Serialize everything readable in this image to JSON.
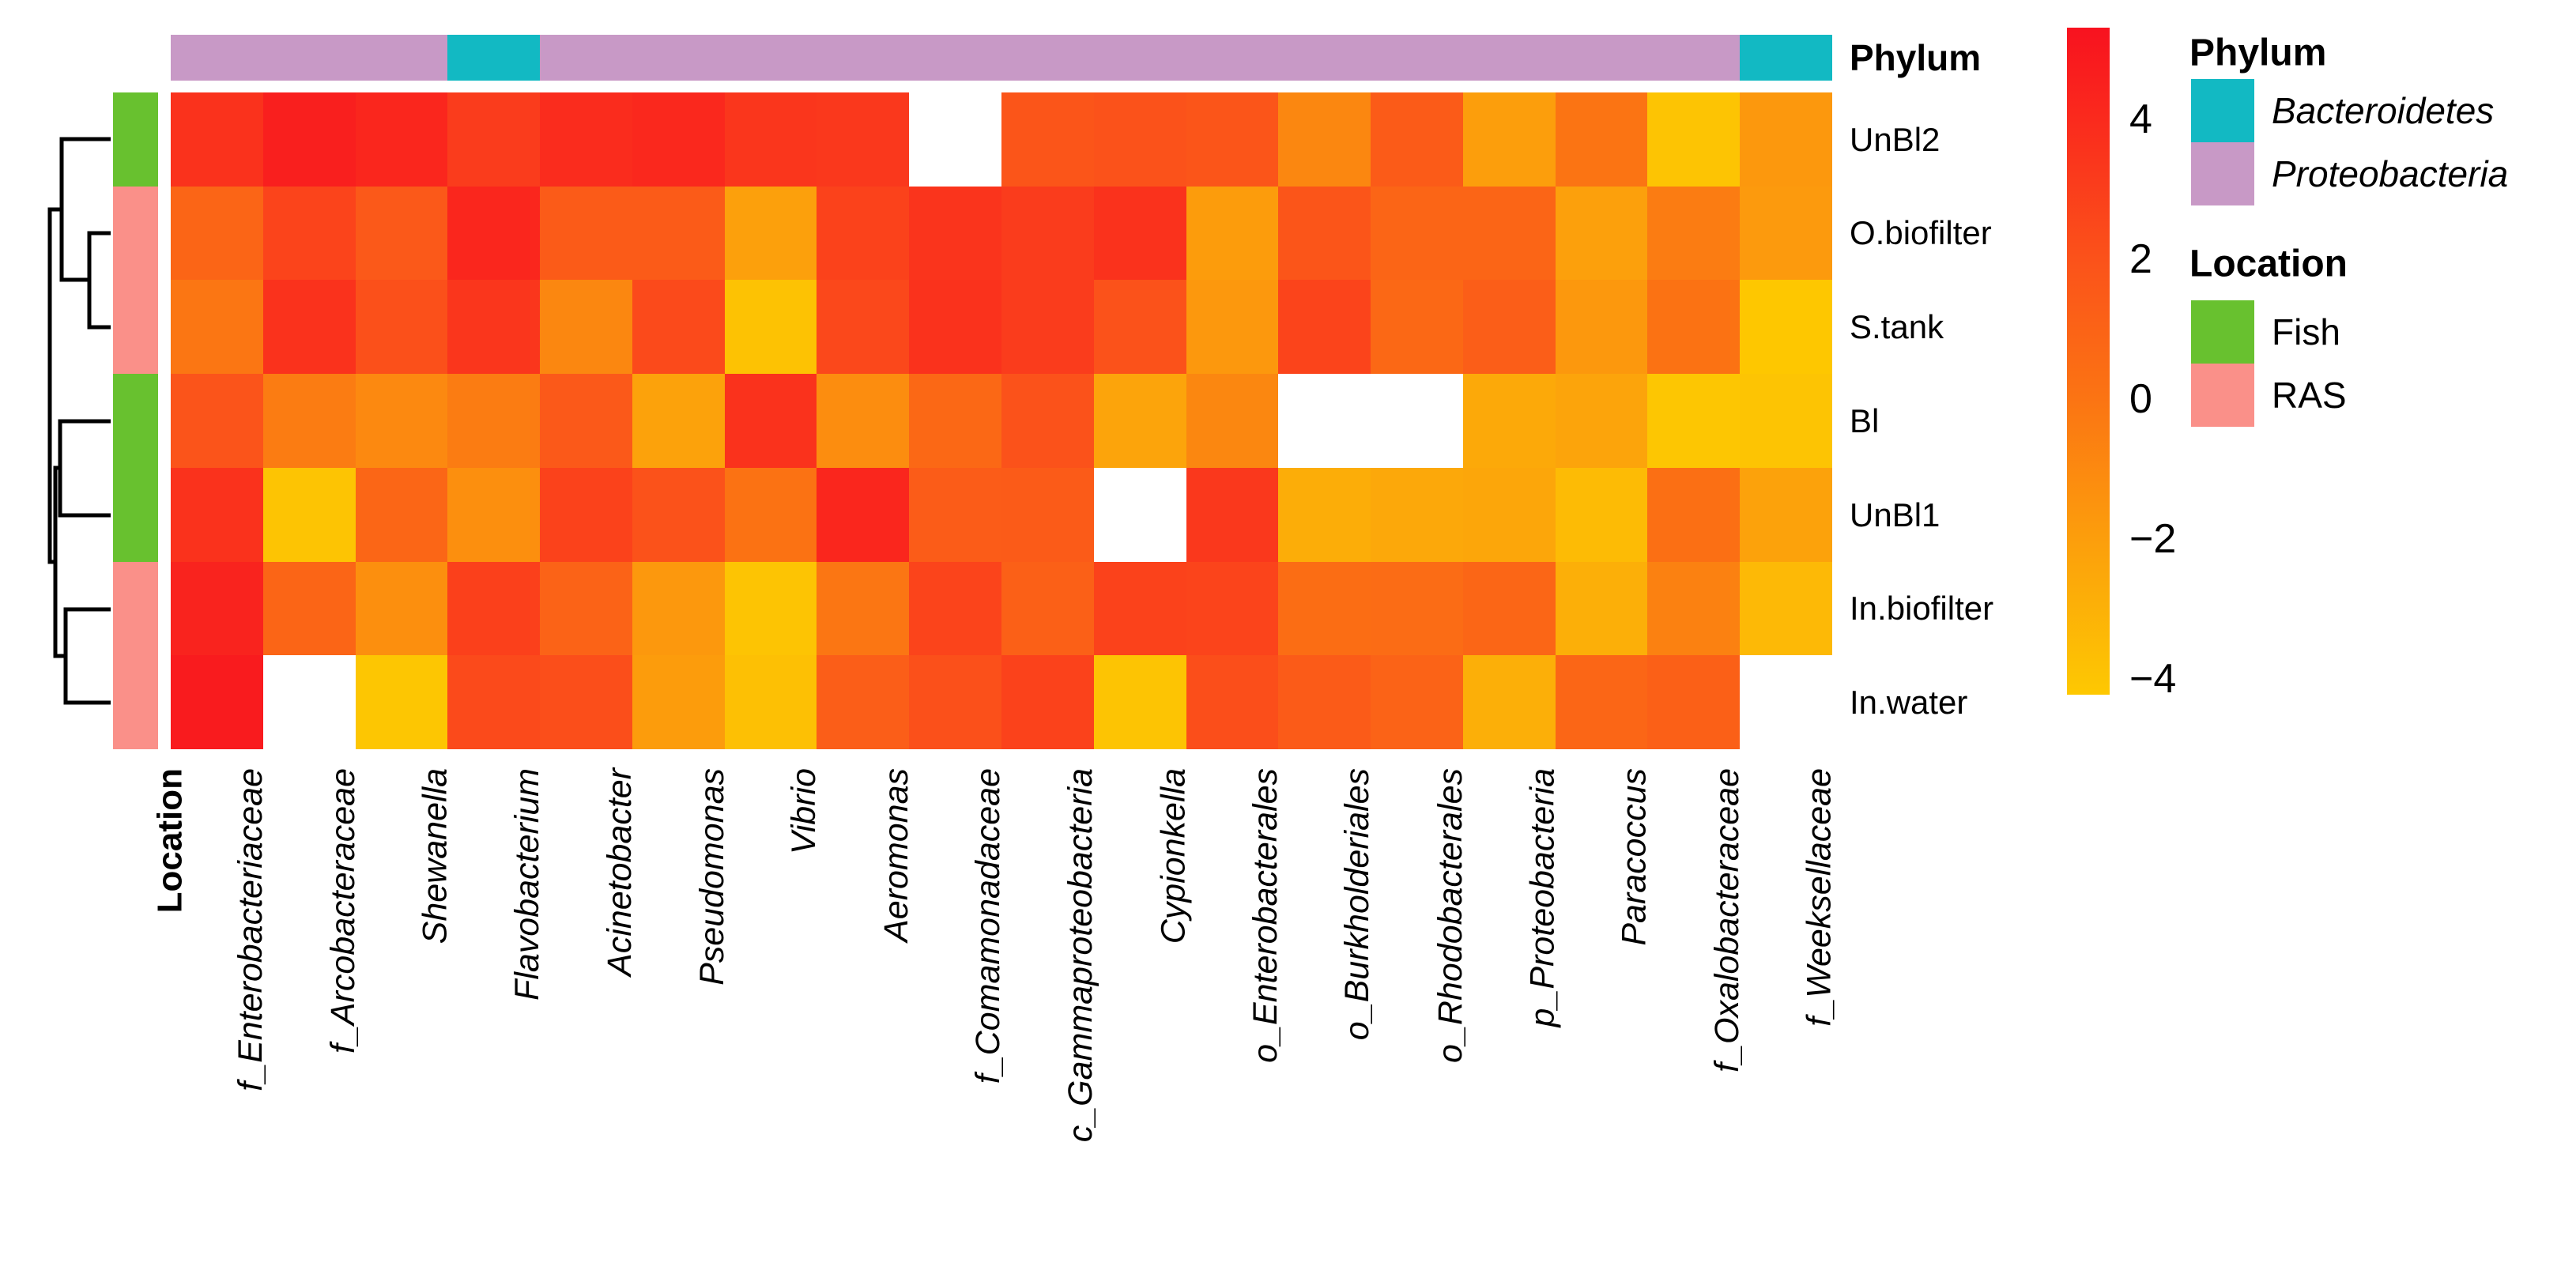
{
  "chart_data": {
    "type": "heatmap",
    "rows": [
      "UnBl2",
      "O.biofilter",
      "S.tank",
      "Bl",
      "UnBl1",
      "In.biofilter",
      "In.water"
    ],
    "row_location": [
      "Fish",
      "RAS",
      "RAS",
      "Fish",
      "Fish",
      "RAS",
      "RAS"
    ],
    "columns": [
      "f_Enterobacteriaceae",
      "f_Arcobacteraceae",
      "Shewanella",
      "Flavobacterium",
      "Acinetobacter",
      "Pseudomonas",
      "Vibrio",
      "Aeromonas",
      "f_Comamonadaceae",
      "c_Gammaproteobacteria",
      "Cypionkella",
      "o_Enterobacterales",
      "o_Burkholderiales",
      "o_Rhodobacterales",
      "p_Proteobacteria",
      "Paracoccus",
      "f_Oxalobacteraceae",
      "f_Weeksellaceae"
    ],
    "column_phylum": [
      "Proteobacteria",
      "Proteobacteria",
      "Proteobacteria",
      "Bacteroidetes",
      "Proteobacteria",
      "Proteobacteria",
      "Proteobacteria",
      "Proteobacteria",
      "Proteobacteria",
      "Proteobacteria",
      "Proteobacteria",
      "Proteobacteria",
      "Proteobacteria",
      "Proteobacteria",
      "Proteobacteria",
      "Proteobacteria",
      "Proteobacteria",
      "Bacteroidetes"
    ],
    "values": [
      [
        3.6,
        4.6,
        4.2,
        3.1,
        3.9,
        4.1,
        3.4,
        3.3,
        null,
        1.8,
        2.0,
        1.8,
        -0.9,
        1.5,
        -2.0,
        0.0,
        -4.0,
        -1.7
      ],
      [
        0.9,
        2.7,
        1.6,
        4.2,
        1.5,
        1.5,
        -2.1,
        2.8,
        3.5,
        3.1,
        3.6,
        -1.9,
        1.8,
        0.9,
        0.9,
        -2.1,
        -0.4,
        -1.8
      ],
      [
        -0.1,
        3.6,
        2.1,
        3.4,
        -0.9,
        2.4,
        -3.9,
        2.5,
        3.6,
        3.1,
        2.0,
        -1.7,
        2.7,
        0.7,
        1.3,
        -1.7,
        0.1,
        -4.2
      ],
      [
        1.9,
        -0.4,
        -1.0,
        -0.4,
        1.6,
        -2.2,
        3.6,
        -1.2,
        0.7,
        2.0,
        -2.3,
        -0.9,
        null,
        null,
        -2.6,
        -2.3,
        -4.1,
        -4.0
      ],
      [
        3.6,
        -4.0,
        0.8,
        -1.3,
        2.8,
        2.0,
        0.1,
        4.2,
        1.4,
        1.5,
        null,
        3.3,
        -2.8,
        -2.5,
        -2.4,
        -3.5,
        0.3,
        -2.2
      ],
      [
        4.4,
        0.9,
        -1.3,
        2.9,
        1.0,
        -1.7,
        -4.0,
        -0.1,
        2.7,
        1.2,
        2.8,
        2.7,
        0.4,
        0.5,
        0.8,
        -2.9,
        -0.6,
        -3.4
      ],
      [
        4.8,
        null,
        -4.1,
        2.4,
        2.2,
        -1.9,
        -3.8,
        1.3,
        2.1,
        2.8,
        -4.0,
        2.2,
        1.5,
        1.0,
        -2.9,
        0.8,
        1.2,
        null
      ]
    ],
    "row_dendrogram": [
      [
        "UnBl2",
        [
          "O.biofilter",
          "S.tank"
        ]
      ],
      [
        [
          "Bl",
          "UnBl1"
        ],
        [
          "In.biofilter",
          "In.water"
        ]
      ]
    ],
    "colorbar": {
      "top_value": 5.31,
      "bottom_value": -4.23,
      "ticks": [
        {
          "label": "4",
          "value": 4
        },
        {
          "label": "2",
          "value": 2
        },
        {
          "label": "0",
          "value": 0
        },
        {
          "label": "−2",
          "value": -2
        },
        {
          "label": "−4",
          "value": -4
        }
      ],
      "stops": [
        {
          "v": 5.31,
          "c": "#F8121F"
        },
        {
          "v": 4,
          "c": "#FA2A1D"
        },
        {
          "v": 2,
          "c": "#FB521A"
        },
        {
          "v": 0,
          "c": "#FB7413"
        },
        {
          "v": -2,
          "c": "#FC9E0C"
        },
        {
          "v": -4,
          "c": "#FDC403"
        },
        {
          "v": -4.23,
          "c": "#FEC800"
        }
      ]
    },
    "annotations": {
      "phylum_title": "Phylum",
      "location_title": "Location"
    },
    "legend": {
      "phylum": {
        "title": "Phylum",
        "items": [
          {
            "label": "Bacteroidetes",
            "color": "#12B9C3",
            "italic": true
          },
          {
            "label": "Proteobacteria",
            "color": "#C899C6",
            "italic": true
          }
        ]
      },
      "location": {
        "title": "Location",
        "items": [
          {
            "label": "Fish",
            "color": "#68C12F",
            "italic": false
          },
          {
            "label": "RAS",
            "color": "#FA9089",
            "italic": false
          }
        ]
      }
    },
    "category_colors": {
      "Bacteroidetes": "#12B9C3",
      "Proteobacteria": "#C899C6",
      "Fish": "#68C12F",
      "RAS": "#FA9089"
    },
    "missing_cell_color": "#FFFFFF"
  }
}
